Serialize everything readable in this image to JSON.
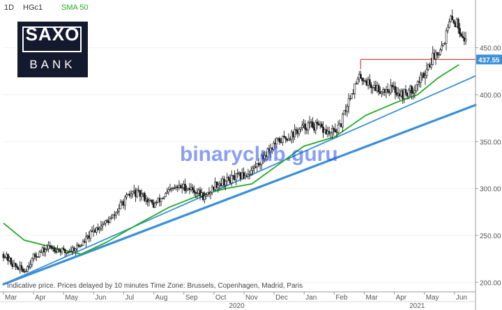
{
  "header": {
    "timeframe": "1D",
    "symbol": "HGc1",
    "indicator": "SMA 50"
  },
  "logo": {
    "top_text": "SAXO",
    "bottom_text": "BANK"
  },
  "notice": "Indicative price. Prices delayed by 10 minutes   Time Zone: Brussels, Copenhagen, Madrid, Paris",
  "watermark": "binaryclub.guru",
  "colors": {
    "candles": "#1a1a1a",
    "sma": "#22aa22",
    "trendlines": "#3a8fd8",
    "resistance": "#e04040",
    "price_tag": "#3a8fd8"
  },
  "chart_data": {
    "type": "candlestick",
    "instrument": "HGc1",
    "timeframe": "1D",
    "x_month_labels": [
      "Mar",
      "Apr",
      "May",
      "Jun",
      "Jul",
      "Aug",
      "Sep",
      "Oct",
      "Nov",
      "Dec",
      "Jan",
      "Feb",
      "Mar",
      "Apr",
      "May",
      "Jun"
    ],
    "x_year_labels": [
      "2020",
      "2021"
    ],
    "y_ticks": [
      200,
      250,
      300,
      350,
      400,
      450
    ],
    "ylim": [
      195,
      495
    ],
    "x_range_days": [
      0,
      456
    ],
    "current_price": 437.55,
    "price_path": [
      {
        "x": 0,
        "y": 230
      },
      {
        "x": 10,
        "y": 218
      },
      {
        "x": 20,
        "y": 212
      },
      {
        "x": 30,
        "y": 228
      },
      {
        "x": 45,
        "y": 238
      },
      {
        "x": 60,
        "y": 232
      },
      {
        "x": 75,
        "y": 240
      },
      {
        "x": 90,
        "y": 258
      },
      {
        "x": 105,
        "y": 268
      },
      {
        "x": 115,
        "y": 285
      },
      {
        "x": 125,
        "y": 296
      },
      {
        "x": 135,
        "y": 292
      },
      {
        "x": 145,
        "y": 282
      },
      {
        "x": 155,
        "y": 292
      },
      {
        "x": 165,
        "y": 300
      },
      {
        "x": 175,
        "y": 302
      },
      {
        "x": 185,
        "y": 298
      },
      {
        "x": 195,
        "y": 290
      },
      {
        "x": 205,
        "y": 305
      },
      {
        "x": 215,
        "y": 308
      },
      {
        "x": 225,
        "y": 312
      },
      {
        "x": 235,
        "y": 315
      },
      {
        "x": 245,
        "y": 325
      },
      {
        "x": 255,
        "y": 340
      },
      {
        "x": 265,
        "y": 350
      },
      {
        "x": 275,
        "y": 355
      },
      {
        "x": 285,
        "y": 362
      },
      {
        "x": 295,
        "y": 368
      },
      {
        "x": 305,
        "y": 365
      },
      {
        "x": 315,
        "y": 358
      },
      {
        "x": 325,
        "y": 365
      },
      {
        "x": 335,
        "y": 400
      },
      {
        "x": 345,
        "y": 420
      },
      {
        "x": 355,
        "y": 410
      },
      {
        "x": 365,
        "y": 405
      },
      {
        "x": 375,
        "y": 407
      },
      {
        "x": 385,
        "y": 400
      },
      {
        "x": 395,
        "y": 405
      },
      {
        "x": 405,
        "y": 420
      },
      {
        "x": 415,
        "y": 440
      },
      {
        "x": 425,
        "y": 455
      },
      {
        "x": 432,
        "y": 480
      },
      {
        "x": 438,
        "y": 476
      },
      {
        "x": 444,
        "y": 463
      },
      {
        "x": 448,
        "y": 453
      }
    ],
    "sma_50": {
      "name": "SMA 50",
      "points": [
        {
          "x": 0,
          "y": 263
        },
        {
          "x": 20,
          "y": 245
        },
        {
          "x": 45,
          "y": 238
        },
        {
          "x": 75,
          "y": 230
        },
        {
          "x": 100,
          "y": 243
        },
        {
          "x": 130,
          "y": 262
        },
        {
          "x": 160,
          "y": 280
        },
        {
          "x": 190,
          "y": 293
        },
        {
          "x": 215,
          "y": 300
        },
        {
          "x": 240,
          "y": 305
        },
        {
          "x": 265,
          "y": 325
        },
        {
          "x": 290,
          "y": 345
        },
        {
          "x": 320,
          "y": 355
        },
        {
          "x": 350,
          "y": 378
        },
        {
          "x": 380,
          "y": 392
        },
        {
          "x": 400,
          "y": 400
        },
        {
          "x": 420,
          "y": 418
        },
        {
          "x": 440,
          "y": 432
        }
      ]
    },
    "trendlines": [
      {
        "role": "lower support",
        "start": {
          "x": 0,
          "y": 198
        },
        "end": {
          "x": 456,
          "y": 389
        }
      },
      {
        "role": "upper support",
        "start": {
          "x": 0,
          "y": 198
        },
        "end": {
          "x": 456,
          "y": 420
        }
      }
    ],
    "resistance": {
      "level": 437.55,
      "x_start": 345,
      "x_end": 456
    }
  }
}
